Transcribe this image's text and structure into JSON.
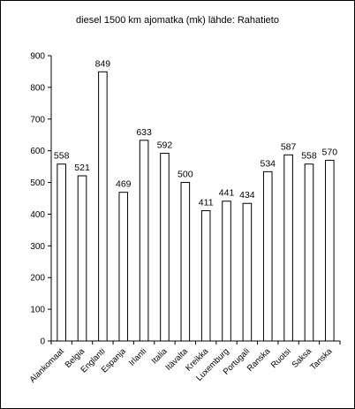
{
  "chart_data": {
    "type": "bar",
    "title": "diesel 1500 km ajomatka (mk) lähde: Rahatieto",
    "xlabel": "",
    "ylabel": "",
    "categories": [
      "Alankomaat",
      "Belgia",
      "Englanti",
      "Espanja",
      "Irlanti",
      "Italia",
      "Itävalta",
      "Kreikka",
      "Luxemburg",
      "Portugali",
      "Ranska",
      "Ruotsi",
      "Saksa",
      "Tanska"
    ],
    "values": [
      558,
      521,
      849,
      469,
      633,
      592,
      500,
      411,
      441,
      434,
      534,
      587,
      558,
      570
    ],
    "ylim": [
      0,
      900
    ],
    "yticks": [
      0,
      100,
      200,
      300,
      400,
      500,
      600,
      700,
      800,
      900
    ],
    "grid": false,
    "legend": "none",
    "colors": {
      "bar_fill": "#ffffff",
      "bar_stroke": "#000000",
      "axis": "#000000",
      "frame": "#000000"
    }
  }
}
